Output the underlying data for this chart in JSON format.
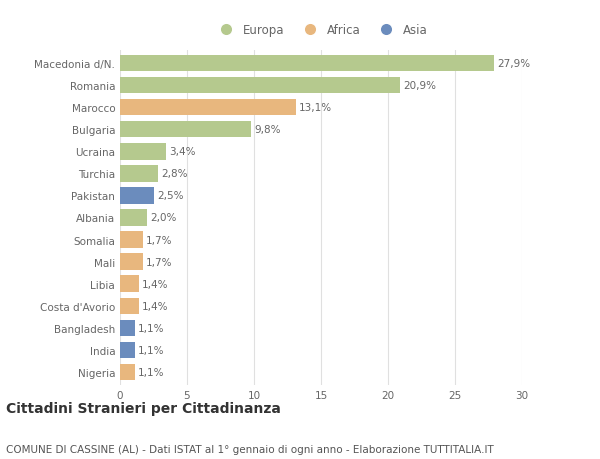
{
  "categories": [
    "Macedonia d/N.",
    "Romania",
    "Marocco",
    "Bulgaria",
    "Ucraina",
    "Turchia",
    "Pakistan",
    "Albania",
    "Somalia",
    "Mali",
    "Libia",
    "Costa d'Avorio",
    "Bangladesh",
    "India",
    "Nigeria"
  ],
  "values": [
    27.9,
    20.9,
    13.1,
    9.8,
    3.4,
    2.8,
    2.5,
    2.0,
    1.7,
    1.7,
    1.4,
    1.4,
    1.1,
    1.1,
    1.1
  ],
  "labels": [
    "27,9%",
    "20,9%",
    "13,1%",
    "9,8%",
    "3,4%",
    "2,8%",
    "2,5%",
    "2,0%",
    "1,7%",
    "1,7%",
    "1,4%",
    "1,4%",
    "1,1%",
    "1,1%",
    "1,1%"
  ],
  "continents": [
    "Europa",
    "Europa",
    "Africa",
    "Europa",
    "Europa",
    "Europa",
    "Asia",
    "Europa",
    "Africa",
    "Africa",
    "Africa",
    "Africa",
    "Asia",
    "Asia",
    "Africa"
  ],
  "colors": {
    "Europa": "#b5c98e",
    "Africa": "#e8b77e",
    "Asia": "#6b8cbd"
  },
  "xlim": [
    0,
    30
  ],
  "xticks": [
    0,
    5,
    10,
    15,
    20,
    25,
    30
  ],
  "title": "Cittadini Stranieri per Cittadinanza",
  "subtitle": "COMUNE DI CASSINE (AL) - Dati ISTAT al 1° gennaio di ogni anno - Elaborazione TUTTITALIA.IT",
  "background_color": "#ffffff",
  "grid_color": "#e0e0e0",
  "bar_height": 0.75,
  "title_fontsize": 10,
  "subtitle_fontsize": 7.5,
  "label_fontsize": 7.5,
  "tick_fontsize": 7.5,
  "legend_fontsize": 8.5
}
